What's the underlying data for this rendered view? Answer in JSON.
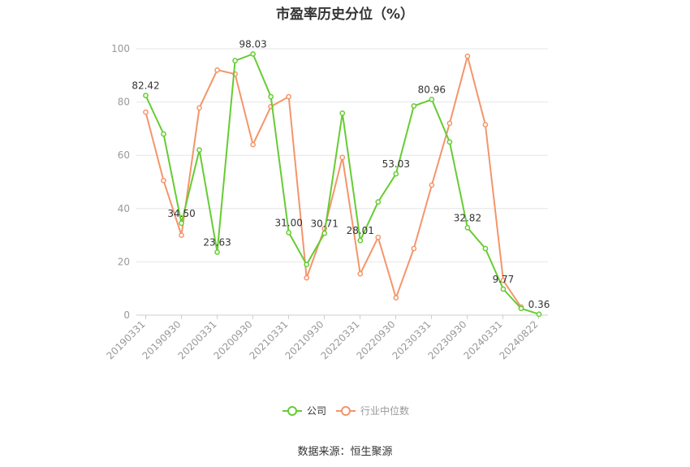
{
  "chart_data": {
    "type": "line",
    "title": "市盈率历史分位（%）",
    "source": "数据来源：恒生聚源",
    "ylim": [
      0,
      100
    ],
    "yticks": [
      0,
      20,
      40,
      60,
      80,
      100
    ],
    "xtick_labels": [
      "20190331",
      "20190930",
      "20200331",
      "20200930",
      "20210331",
      "20210930",
      "20220331",
      "20220930",
      "20230331",
      "20230930",
      "20240331",
      "20240822"
    ],
    "grid": true,
    "legend_position": "bottom-center",
    "series": [
      {
        "name": "公司",
        "color": "#66cc33",
        "values": [
          82.42,
          68.0,
          34.5,
          62.0,
          23.63,
          95.5,
          98.03,
          82.0,
          31.0,
          19.0,
          30.71,
          75.8,
          28.01,
          42.5,
          53.03,
          78.5,
          80.96,
          65.0,
          32.82,
          25.0,
          9.77,
          2.5,
          0.36
        ],
        "labels": [
          "82.42",
          "",
          "34.50",
          "",
          "23.63",
          "",
          "98.03",
          "",
          "31.00",
          "",
          "30.71",
          "",
          "28.01",
          "",
          "53.03",
          "",
          "80.96",
          "",
          "32.82",
          "",
          "9.77",
          "",
          "0.36"
        ]
      },
      {
        "name": "行业中位数",
        "color": "#f4956a",
        "values": [
          76.2,
          50.5,
          30.0,
          77.8,
          92.0,
          90.5,
          64.0,
          78.3,
          82.0,
          14.0,
          32.5,
          59.2,
          15.5,
          29.2,
          6.5,
          25.0,
          48.8,
          72.0,
          97.2,
          71.5,
          13.0,
          3.0,
          null
        ]
      }
    ]
  }
}
